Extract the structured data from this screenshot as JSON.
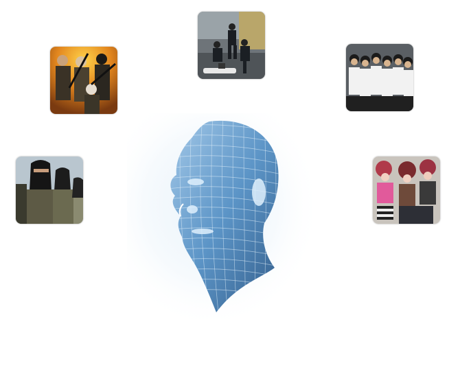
{
  "images": {
    "top": {
      "name": "police-arrest-photo"
    },
    "top_left": {
      "name": "armed-militants-photo"
    },
    "top_right": {
      "name": "young-men-group-photo"
    },
    "left": {
      "name": "masked-fighters-photo"
    },
    "right": {
      "name": "emo-teens-photo"
    },
    "center": {
      "name": "wireframe-head-illustration"
    }
  },
  "colors": {
    "background": "#ffffff",
    "head_blue": "#3f7fb8",
    "head_glow": "#cfe3f5"
  }
}
